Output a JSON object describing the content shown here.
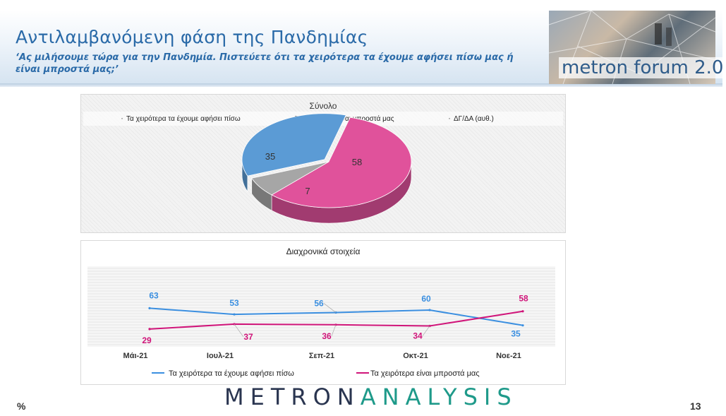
{
  "header": {
    "title": "Αντιλαμβανόμενη φάση της Πανδημίας",
    "subtitle": "‘Ας μιλήσουμε τώρα για την Πανδημία. Πιστεύετε ότι τα χειρότερα τα έχουμε αφήσει πίσω μας ή είναι μπροστά μας;’",
    "logo_text": "metron forum 2.0"
  },
  "chart_data": [
    {
      "type": "pie",
      "title": "Σύνολο",
      "legend_position": "top",
      "labels": [
        "Τα χειρότερα τα έχουμε αφήσει πίσω",
        "Τα χειρότερα είναι μπροστά μας",
        "ΔΓ/ΔΑ (αυθ.)"
      ],
      "values": [
        35,
        58,
        7
      ],
      "colors": [
        "#5b9bd5",
        "#e0529b",
        "#a6a6a6"
      ]
    },
    {
      "type": "line",
      "title": "Διαχρονικά στοιχεία",
      "categories": [
        "Μάι-21",
        "Ιουλ-21",
        "Σεπ-21",
        "Οκτ-21",
        "Νοε-21"
      ],
      "series": [
        {
          "name": "Τα χειρότερα τα έχουμε αφήσει πίσω",
          "values": [
            63,
            53,
            56,
            60,
            35
          ],
          "color": "#3b8fe0"
        },
        {
          "name": "Τα χειρότερα είναι μπροστά μας",
          "values": [
            29,
            37,
            36,
            34,
            58
          ],
          "color": "#d0157a"
        }
      ],
      "ylim": [
        0,
        100
      ],
      "grid": true,
      "legend_position": "bottom"
    }
  ],
  "footer": {
    "unit_label": "%",
    "brand_part1": "METRON",
    "brand_part2": "ANALYSIS",
    "page_number": "13"
  }
}
